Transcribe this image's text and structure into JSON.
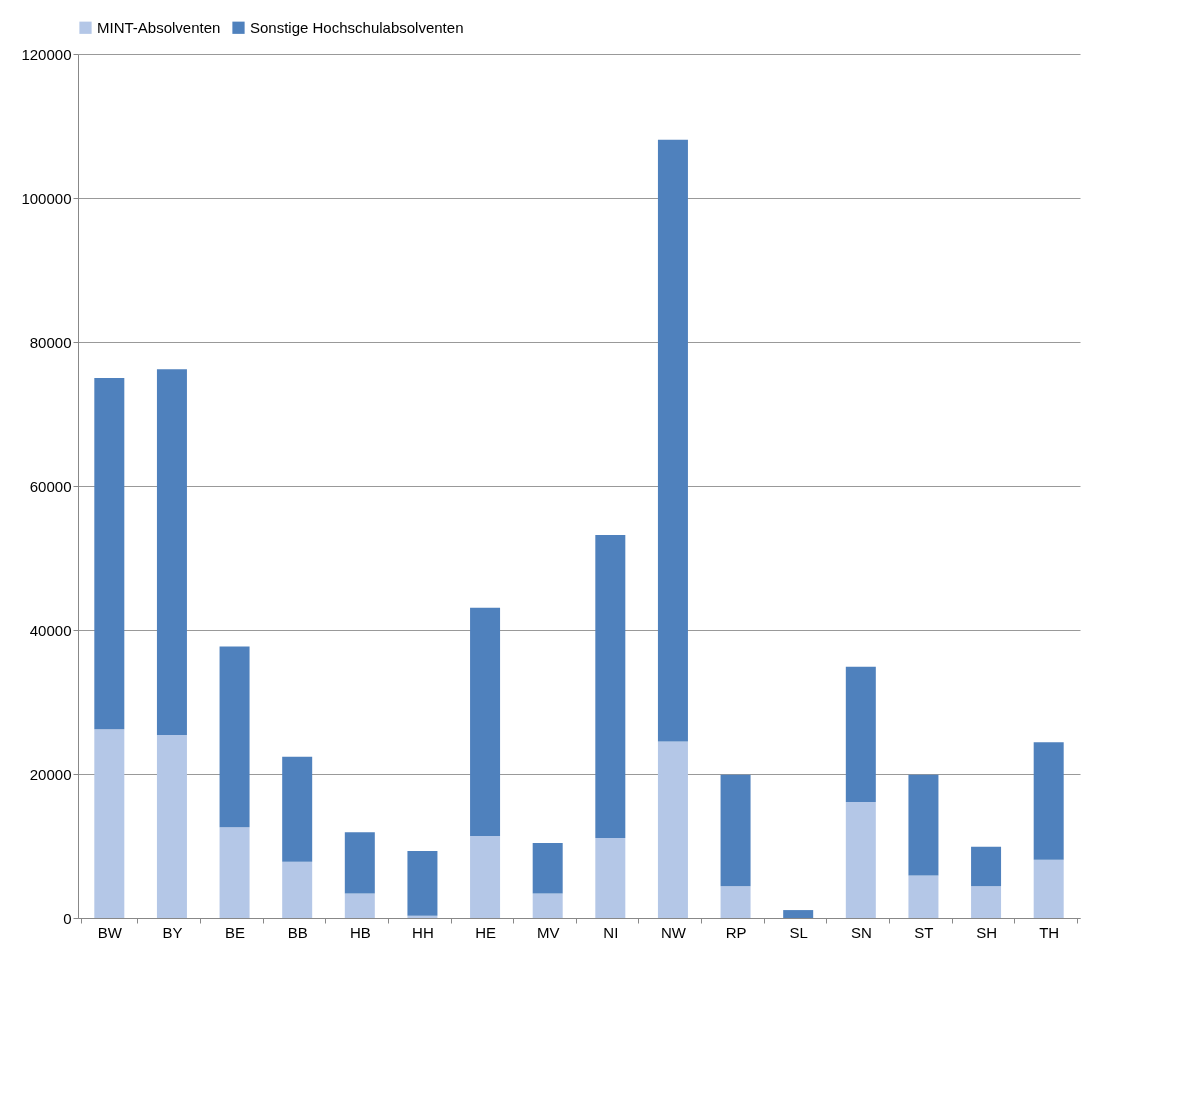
{
  "chart_data": {
    "type": "bar",
    "stacked": true,
    "categories": [
      "BW",
      "BY",
      "BE",
      "BB",
      "HB",
      "HH",
      "HE",
      "MV",
      "NI",
      "NW",
      "RP",
      "SL",
      "SN",
      "ST",
      "SH",
      "TH"
    ],
    "series": [
      {
        "name": "MINT-Absolventen",
        "color": "#b4c7e7",
        "values": [
          26200,
          25400,
          12600,
          7800,
          3400,
          300,
          11400,
          3400,
          11100,
          24500,
          4400,
          null,
          16100,
          5900,
          4400,
          8100
        ]
      },
      {
        "name": "Sonstige Hochschulabsolventen",
        "color": "#4f81bd",
        "values": [
          48800,
          50800,
          25100,
          14600,
          8500,
          9000,
          31700,
          7000,
          42100,
          83600,
          15500,
          1100,
          18800,
          14000,
          5500,
          16300
        ]
      }
    ],
    "ylim": [
      0,
      120000
    ],
    "yticks": [
      0,
      20000,
      40000,
      60000,
      80000,
      100000,
      120000
    ],
    "grid": "y",
    "legend": "top"
  }
}
